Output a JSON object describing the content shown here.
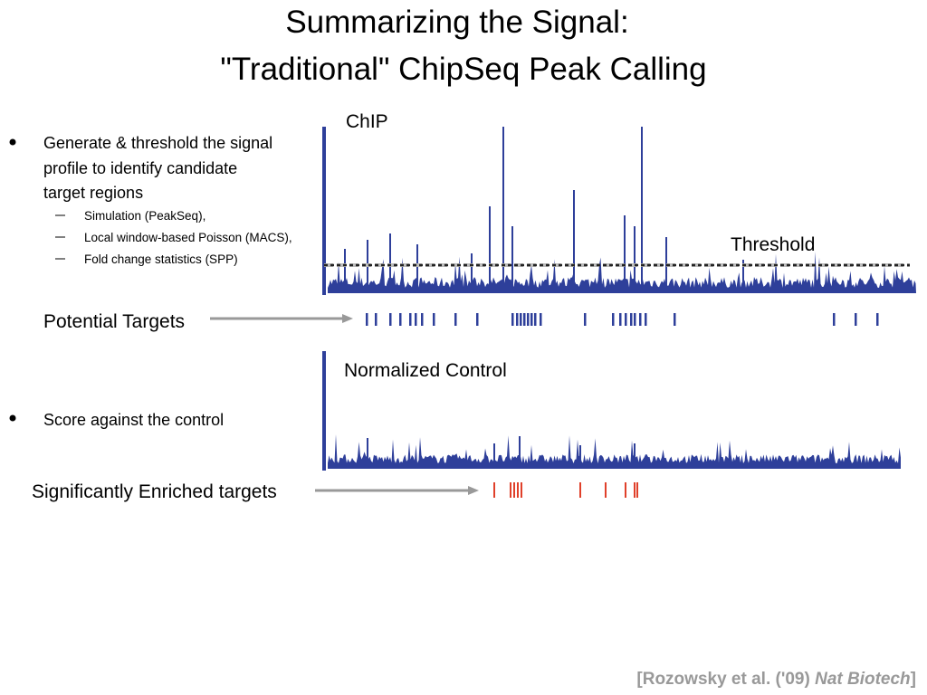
{
  "title": [
    "Summarizing the Signal:",
    "\"Traditional\" ChipSeq Peak Calling"
  ],
  "bullets": [
    {
      "lines": [
        "Generate & threshold the signal",
        "profile to identify candidate",
        "target regions"
      ],
      "sub": [
        "Simulation (PeakSeq),",
        "Local window-based Poisson (MACS),",
        "Fold change statistics (SPP)"
      ]
    },
    {
      "lines": [
        "Score against the control"
      ]
    }
  ],
  "labels": {
    "chip": "ChIP",
    "threshold": "Threshold",
    "potential_targets": "Potential Targets",
    "normalized_control": "Normalized Control",
    "enriched_targets": "Significantly Enriched targets"
  },
  "citation": {
    "prefix": "[Rozowsky et al. ('09) ",
    "journal": "Nat Biotech",
    "suffix": "]"
  }
}
